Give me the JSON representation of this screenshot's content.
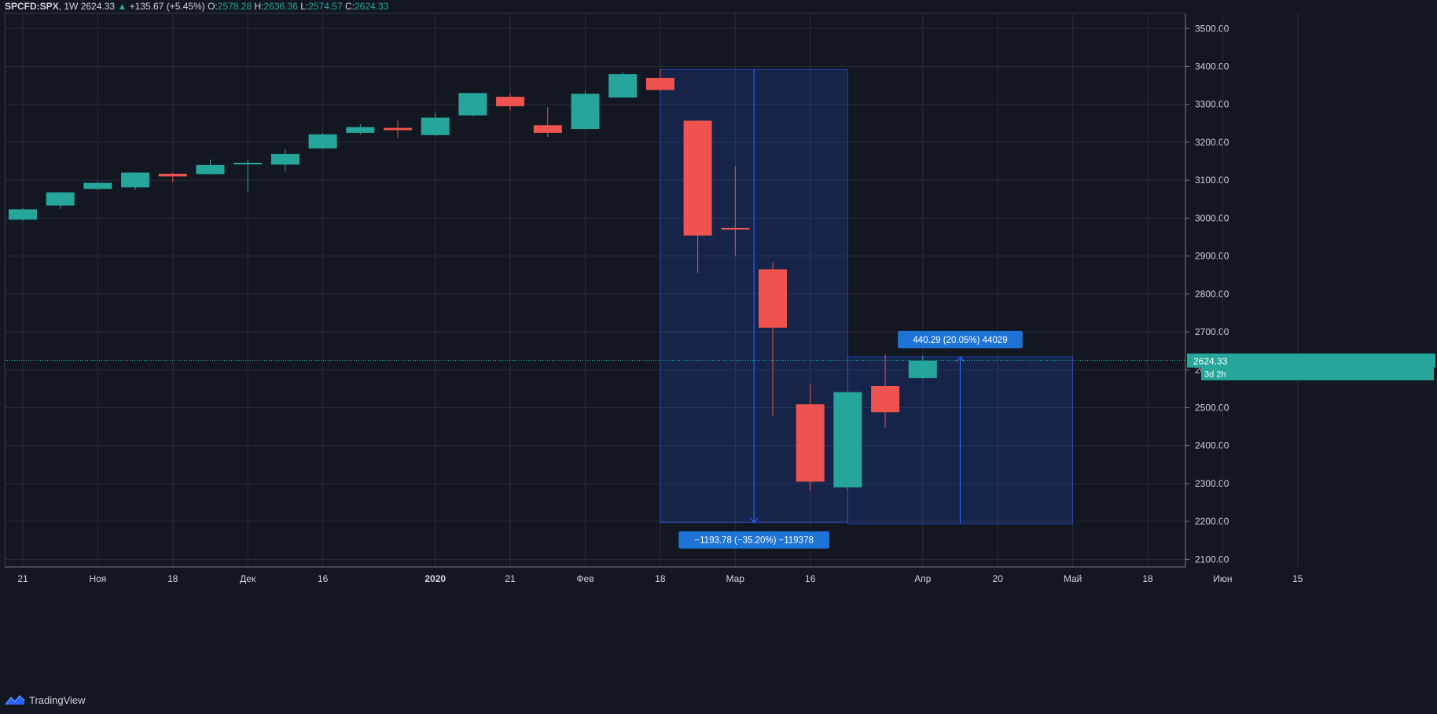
{
  "legend": {
    "symbol": "SPCFD:SPX",
    "interval": "1W",
    "last": "2624.33",
    "change_arrow": "▲",
    "change": "+135.67 (+5.45%)",
    "o_label": "O:",
    "open": "2578.28",
    "h_label": "H:",
    "high": "2636.36",
    "l_label": "L:",
    "low": "2574.57",
    "c_label": "C:",
    "close": "2624.33"
  },
  "brand": {
    "name": "TradingView",
    "icon": "tradingview-logo-icon"
  },
  "colors": {
    "up": "#26a69a",
    "down": "#ef5350",
    "background": "#131722",
    "grid": "#2a2e39",
    "measure": "#2962ff"
  },
  "chart_data": {
    "type": "candlestick",
    "y_range": [
      2080,
      3540
    ],
    "y_ticks": [
      "3500.00",
      "3400.00",
      "3300.00",
      "3200.00",
      "3100.00",
      "3000.00",
      "2900.00",
      "2800.00",
      "2700.00",
      "2600.00",
      "2500.00",
      "2400.00",
      "2300.00",
      "2200.00",
      "2100.00"
    ],
    "x_ticks": [
      "21",
      "Ноя",
      "18",
      "Дек",
      "16",
      "2020",
      "21",
      "Фев",
      "18",
      "Мар",
      "16",
      "Апр",
      "20",
      "Май",
      "18",
      "Июн",
      "15"
    ],
    "x_tick_bars": [
      0,
      2,
      4,
      6,
      8,
      11,
      13,
      15,
      17,
      19,
      21,
      24,
      26,
      28,
      30,
      32,
      34
    ],
    "bars_total": 38,
    "candles": [
      {
        "o": 2996,
        "h": 3027,
        "l": 2993,
        "c": 3023
      },
      {
        "o": 3033,
        "h": 3070,
        "l": 3024,
        "c": 3068
      },
      {
        "o": 3077,
        "h": 3096,
        "l": 3074,
        "c": 3093
      },
      {
        "o": 3081,
        "h": 3121,
        "l": 3075,
        "c": 3120
      },
      {
        "o": 3117,
        "h": 3120,
        "l": 3094,
        "c": 3110
      },
      {
        "o": 3116,
        "h": 3155,
        "l": 3114,
        "c": 3140
      },
      {
        "o": 3144,
        "h": 3153,
        "l": 3070,
        "c": 3146
      },
      {
        "o": 3141,
        "h": 3182,
        "l": 3123,
        "c": 3169
      },
      {
        "o": 3184,
        "h": 3225,
        "l": 3183,
        "c": 3221
      },
      {
        "o": 3225,
        "h": 3248,
        "l": 3220,
        "c": 3240
      },
      {
        "o": 3238,
        "h": 3257,
        "l": 3212,
        "c": 3232
      },
      {
        "o": 3219,
        "h": 3278,
        "l": 3217,
        "c": 3265
      },
      {
        "o": 3271,
        "h": 3330,
        "l": 3269,
        "c": 3330
      },
      {
        "o": 3320,
        "h": 3330,
        "l": 3284,
        "c": 3295
      },
      {
        "o": 3245,
        "h": 3293,
        "l": 3214,
        "c": 3225
      },
      {
        "o": 3235,
        "h": 3337,
        "l": 3235,
        "c": 3328
      },
      {
        "o": 3318,
        "h": 3385,
        "l": 3318,
        "c": 3380
      },
      {
        "o": 3370,
        "h": 3393,
        "l": 3335,
        "c": 3338
      },
      {
        "o": 3257,
        "h": 3259,
        "l": 2856,
        "c": 2954
      },
      {
        "o": 2974,
        "h": 3137,
        "l": 2901,
        "c": 2972
      },
      {
        "o": 2865,
        "h": 2883,
        "l": 2478,
        "c": 2711
      },
      {
        "o": 2509,
        "h": 2563,
        "l": 2281,
        "c": 2305
      },
      {
        "o": 2290,
        "h": 2541,
        "l": 2284,
        "c": 2541
      },
      {
        "o": 2557,
        "h": 2641,
        "l": 2447,
        "c": 2488
      },
      {
        "o": 2578,
        "h": 2636,
        "l": 2575,
        "c": 2624
      }
    ],
    "last_price": {
      "value": 2624.33,
      "label": "2624.33",
      "countdown": "3d 2h"
    },
    "measures": [
      {
        "from_bar": 17,
        "to_bar": 22,
        "top": 3392,
        "bottom": 2197,
        "direction": "down",
        "label": "−1193.78 (−35.20%) −119378",
        "label_pos": "bottom"
      },
      {
        "from_bar": 22,
        "to_bar": 28,
        "top": 2634,
        "bottom": 2194,
        "direction": "up",
        "label": "440.29 (20.05%) 44029",
        "label_pos": "top"
      }
    ]
  }
}
